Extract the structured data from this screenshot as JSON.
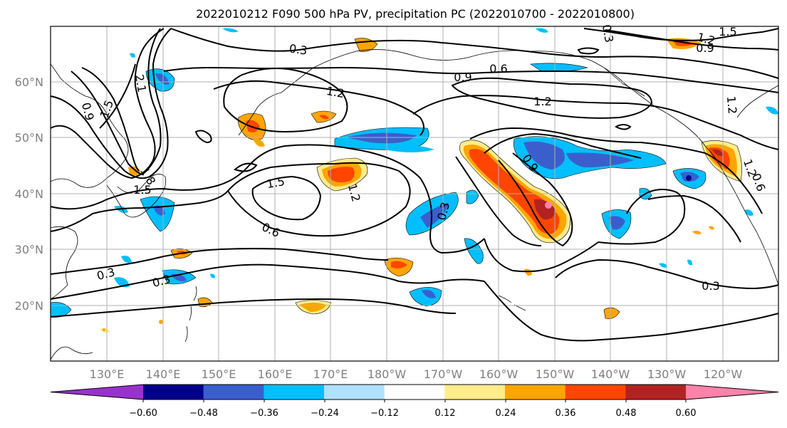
{
  "title": "2022010212 F090 500 hPa PV, precipitation PC (2022010700 - 2022010800)",
  "lat_labels": [
    "60°N",
    "50°N",
    "40°N",
    "30°N",
    "20°N"
  ],
  "lon_labels": [
    "130°E",
    "140°E",
    "150°E",
    "160°E",
    "170°E",
    "180°W",
    "170°W",
    "160°W",
    "150°W",
    "140°W",
    "130°W",
    "120°W"
  ],
  "colorbar": {
    "ticks": [
      "−0.60",
      "−0.48",
      "−0.36",
      "−0.24",
      "−0.12",
      "0.12",
      "0.24",
      "0.36",
      "0.48",
      "0.60"
    ],
    "colors": [
      "#9932cc",
      "#00008b",
      "#3a5fcd",
      "#00bfff",
      "#b0e2ff",
      "#ffffff",
      "#ffec8b",
      "#ffa500",
      "#ff4500",
      "#b22222",
      "#ff82ab"
    ]
  },
  "contour_labels": [
    "0.3",
    "0.6",
    "0.9",
    "1.2",
    "1.5",
    "1.2",
    "1.5",
    "0.9",
    "0.6",
    "1.2",
    "1.2",
    "1.2",
    "2.1",
    "1.5",
    "0.9",
    "1.8",
    "1.5",
    "1.2",
    "0.3",
    "0.6",
    "0.3",
    "0.9",
    "0.3",
    "0.3",
    "0.3"
  ]
}
